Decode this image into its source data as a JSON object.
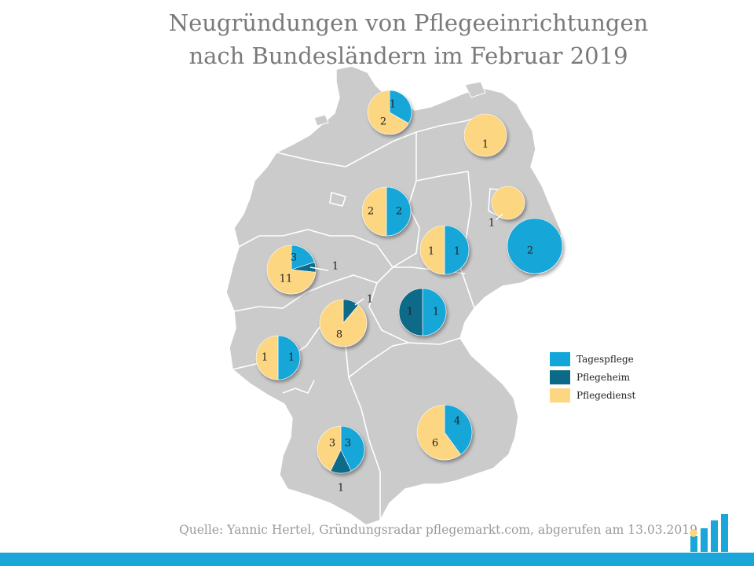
{
  "title_line1": "Neugründungen von Pflegeeinrichtungen",
  "title_line2": "nach Bundesländern im Februar 2019",
  "source": "Quelle: Yannic Hertel, Gründungsradar pflegemarkt.com, abgerufen am 13.03.2019",
  "colors": {
    "tagespflege": "#13a6d8",
    "pflegeheim": "#0b6a88",
    "pflegedienst": "#fdd681",
    "map_fill": "#cbcbcb",
    "map_border": "#ffffff",
    "accent_bar": "#1aa6d9"
  },
  "legend": [
    {
      "label": "Tagespflege",
      "color": "#13a6d8"
    },
    {
      "label": "Pflegeheim",
      "color": "#0b6a88"
    },
    {
      "label": "Pflegedienst",
      "color": "#fdd681"
    }
  ],
  "chart_data": {
    "type": "pie",
    "series_names": [
      "Tagespflege",
      "Pflegeheim",
      "Pflegedienst"
    ],
    "regions": [
      {
        "values": [
          1,
          0,
          2
        ]
      },
      {
        "values": [
          0,
          0,
          1
        ]
      },
      {
        "values": [
          2,
          0,
          2
        ]
      },
      {
        "values": [
          0,
          0,
          1
        ]
      },
      {
        "values": [
          2,
          0,
          0
        ]
      },
      {
        "values": [
          1,
          0,
          1
        ]
      },
      {
        "values": [
          3,
          1,
          11
        ]
      },
      {
        "values": [
          0,
          1,
          8
        ]
      },
      {
        "values": [
          1,
          1,
          0
        ]
      },
      {
        "values": [
          1,
          0,
          1
        ]
      },
      {
        "values": [
          4,
          0,
          6
        ]
      },
      {
        "values": [
          3,
          1,
          3
        ]
      }
    ]
  }
}
